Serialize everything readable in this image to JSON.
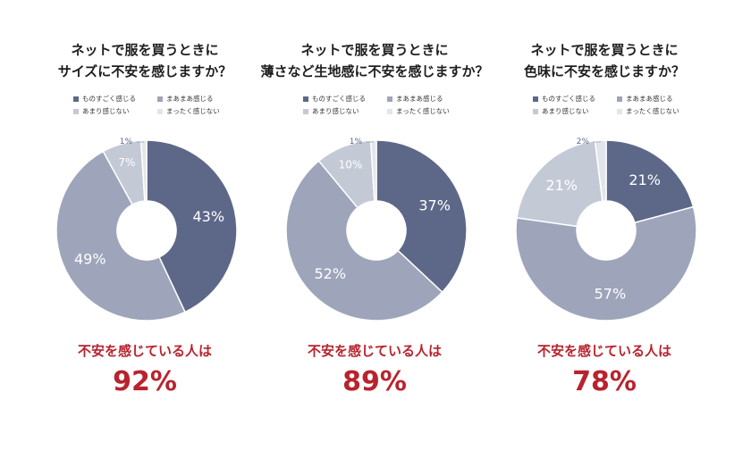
{
  "colors": {
    "very_anxious": "#5d6889",
    "somewhat_anxious": "#9ea5ba",
    "not_very": "#c4c9d6",
    "not_at_all": "#e3e5ec",
    "summary": "#b8232e"
  },
  "legend_labels": [
    "ものすごく感じる",
    "まあまあ感じる",
    "あまり感じない",
    "まったく感じない"
  ],
  "chart_data": [
    {
      "type": "pie",
      "title": [
        "ネットで服を買うときに",
        "サイズに不安を感じますか？"
      ],
      "categories": [
        "ものすごく感じる",
        "まあまあ感じる",
        "あまり感じない",
        "まったく感じない"
      ],
      "values": [
        43,
        49,
        7,
        1
      ],
      "data_labels": [
        "43%",
        "49%",
        "7%",
        "1%"
      ],
      "summary_label": "不安を感じている人は",
      "summary_value": "92%"
    },
    {
      "type": "pie",
      "title": [
        "ネットで服を買うときに",
        "薄さなど生地感に不安を感じますか？"
      ],
      "categories": [
        "ものすごく感じる",
        "まあまあ感じる",
        "あまり感じない",
        "まったく感じない"
      ],
      "values": [
        37,
        52,
        10,
        1
      ],
      "data_labels": [
        "37%",
        "52%",
        "10%",
        "1%"
      ],
      "summary_label": "不安を感じている人は",
      "summary_value": "89%"
    },
    {
      "type": "pie",
      "title": [
        "ネットで服を買うときに",
        "色味に不安を感じますか？"
      ],
      "categories": [
        "ものすごく感じる",
        "まあまあ感じる",
        "あまり感じない",
        "まったく感じない"
      ],
      "values": [
        21,
        57,
        21,
        2
      ],
      "data_labels": [
        "21%",
        "57%",
        "21%",
        "2%"
      ],
      "summary_label": "不安を感じている人は",
      "summary_value": "78%"
    }
  ]
}
